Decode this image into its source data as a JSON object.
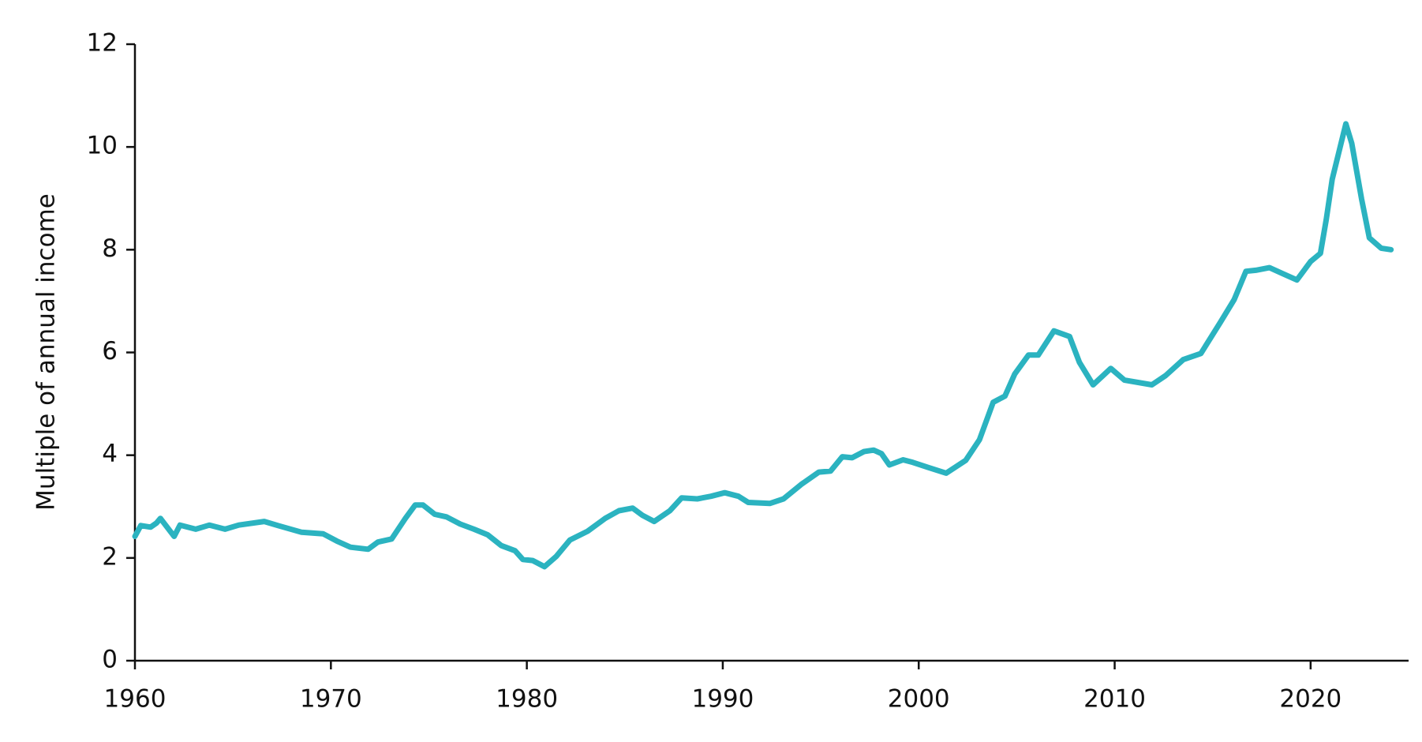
{
  "chart_data": {
    "type": "line",
    "y_label": "Multiple of annual income",
    "x": [
      1960,
      1960.3,
      1960.8,
      1961.1,
      1961.3,
      1962,
      1962.3,
      1963.1,
      1963.8,
      1964.6,
      1965.3,
      1966.6,
      1967.3,
      1968.5,
      1969.6,
      1970.3,
      1971,
      1971.9,
      1972.4,
      1973.1,
      1973.8,
      1974.3,
      1974.7,
      1975.3,
      1975.9,
      1976.6,
      1977.3,
      1978,
      1978.7,
      1979.4,
      1979.8,
      1980.3,
      1980.9,
      1981.5,
      1982.2,
      1983.1,
      1984,
      1984.7,
      1985.4,
      1985.9,
      1986.5,
      1987.3,
      1987.9,
      1988.7,
      1989.4,
      1990.1,
      1990.8,
      1991.3,
      1992.4,
      1993.1,
      1994,
      1994.9,
      1995.5,
      1996.1,
      1996.6,
      1997.2,
      1997.7,
      1998.1,
      1998.5,
      1999.2,
      1999.7,
      2000.5,
      2001.4,
      2002.4,
      2003.1,
      2003.8,
      2004.4,
      2004.9,
      2005.6,
      2006.1,
      2006.9,
      2007.7,
      2008.2,
      2008.9,
      2009.8,
      2010.5,
      2011.9,
      2012.6,
      2013.5,
      2014.4,
      2015.4,
      2016.1,
      2016.7,
      2017.2,
      2017.9,
      2018.6,
      2019.3,
      2020,
      2020.5,
      2020.8,
      2021.1,
      2021.8,
      2022.1,
      2022.6,
      2023,
      2023.6,
      2024.1
    ],
    "values": [
      2.42,
      2.63,
      2.6,
      2.68,
      2.77,
      2.42,
      2.64,
      2.56,
      2.64,
      2.56,
      2.64,
      2.71,
      2.63,
      2.5,
      2.47,
      2.33,
      2.21,
      2.17,
      2.31,
      2.37,
      2.77,
      3.03,
      3.03,
      2.85,
      2.8,
      2.66,
      2.56,
      2.45,
      2.24,
      2.14,
      1.97,
      1.95,
      1.83,
      2.03,
      2.35,
      2.52,
      2.77,
      2.92,
      2.97,
      2.83,
      2.71,
      2.92,
      3.17,
      3.15,
      3.2,
      3.27,
      3.2,
      3.08,
      3.06,
      3.15,
      3.43,
      3.67,
      3.69,
      3.97,
      3.95,
      4.07,
      4.1,
      4.03,
      3.81,
      3.91,
      3.86,
      3.76,
      3.65,
      3.9,
      4.3,
      5.03,
      5.15,
      5.58,
      5.95,
      5.95,
      6.42,
      6.31,
      5.81,
      5.37,
      5.69,
      5.46,
      5.37,
      5.55,
      5.86,
      5.98,
      6.59,
      7.03,
      7.58,
      7.6,
      7.65,
      7.53,
      7.41,
      7.77,
      7.93,
      8.59,
      9.37,
      10.45,
      10.07,
      8.99,
      8.23,
      8.03,
      8.0
    ],
    "color": "#2bb3c0",
    "xlim": [
      1960,
      2025
    ],
    "xticks": [
      1960,
      1970,
      1980,
      1990,
      2000,
      2010,
      2020
    ],
    "ylim": [
      0,
      12
    ],
    "yticks": [
      0,
      2,
      4,
      6,
      8,
      10,
      12
    ]
  }
}
